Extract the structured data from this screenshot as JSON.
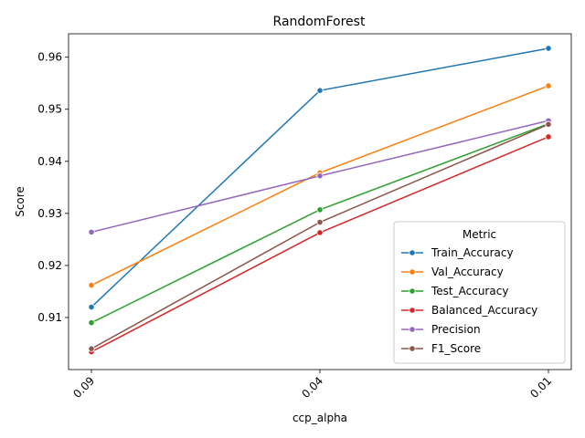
{
  "chart_data": {
    "type": "line",
    "title": "RandomForest",
    "xlabel": "ccp_alpha",
    "ylabel": "Score",
    "categories": [
      "0.09",
      "0.04",
      "0.01"
    ],
    "ylim": [
      0.9,
      0.9645
    ],
    "yticks": [
      "0.91",
      "0.92",
      "0.93",
      "0.94",
      "0.95",
      "0.96"
    ],
    "legend": {
      "title": "Metric",
      "placement": "lower-right"
    },
    "grid": false,
    "series": [
      {
        "name": "Train_Accuracy",
        "color": "#1f77b4",
        "values": [
          0.912,
          0.9536,
          0.9617
        ]
      },
      {
        "name": "Val_Accuracy",
        "color": "#ff7f0e",
        "values": [
          0.9162,
          0.9378,
          0.9545
        ]
      },
      {
        "name": "Test_Accuracy",
        "color": "#2ca02c",
        "values": [
          0.909,
          0.9307,
          0.9472
        ]
      },
      {
        "name": "Balanced_Accuracy",
        "color": "#d62728",
        "values": [
          0.9034,
          0.9263,
          0.9447
        ]
      },
      {
        "name": "Precision",
        "color": "#9467bd",
        "values": [
          0.9264,
          0.9372,
          0.9478
        ]
      },
      {
        "name": "F1_Score",
        "color": "#8c564b",
        "values": [
          0.904,
          0.9283,
          0.9471
        ]
      }
    ]
  }
}
